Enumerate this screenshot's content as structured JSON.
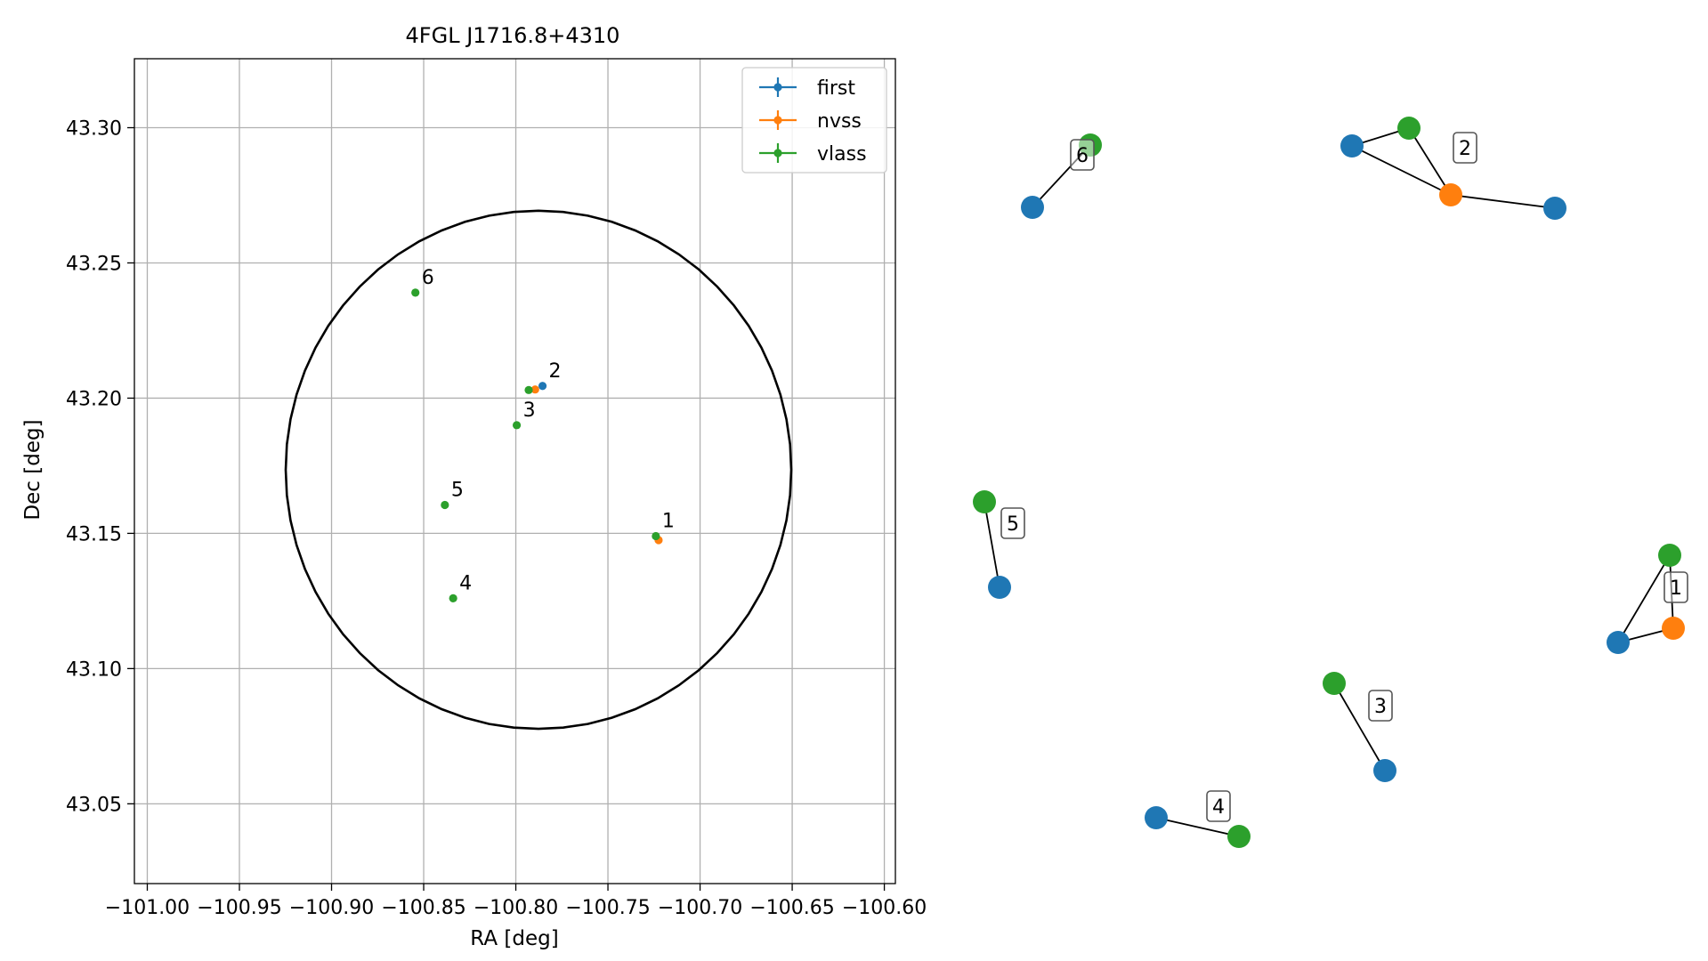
{
  "chart_data": [
    {
      "type": "scatter",
      "title": "4FGL J1716.8+4310",
      "xlabel": "RA [deg]",
      "ylabel": "Dec [deg]",
      "xlim": [
        -101.007,
        -100.594
      ],
      "ylim": [
        43.0205,
        43.3255
      ],
      "xticks": [
        -101.0,
        -100.95,
        -100.9,
        -100.85,
        -100.8,
        -100.75,
        -100.7,
        -100.65,
        -100.6
      ],
      "xtick_labels": [
        "−101.00",
        "−100.95",
        "−100.90",
        "−100.85",
        "−100.80",
        "−100.75",
        "−100.70",
        "−100.65",
        "−100.60"
      ],
      "yticks": [
        43.05,
        43.1,
        43.15,
        43.2,
        43.25,
        43.3
      ],
      "ytick_labels": [
        "43.05",
        "43.10",
        "43.15",
        "43.20",
        "43.25",
        "43.30"
      ],
      "grid": true,
      "legend_position": "top-right",
      "ellipse": {
        "center": [
          -100.7877,
          43.1735
        ],
        "ra_semi_axis": 0.1372,
        "dec_semi_axis": 0.0958
      },
      "series": [
        {
          "name": "first",
          "color": "#1f77b4",
          "points": [
            {
              "x": -100.7855,
              "y": 43.2045
            }
          ]
        },
        {
          "name": "nvss",
          "color": "#ff7f0e",
          "points": [
            {
              "x": -100.7225,
              "y": 43.1475
            },
            {
              "x": -100.7895,
              "y": 43.2032
            }
          ]
        },
        {
          "name": "vlass",
          "color": "#2ca02c",
          "points": [
            {
              "x": -100.724,
              "y": 43.149
            },
            {
              "x": -100.793,
              "y": 43.203
            },
            {
              "x": -100.7995,
              "y": 43.19
            },
            {
              "x": -100.834,
              "y": 43.126
            },
            {
              "x": -100.8385,
              "y": 43.1605
            },
            {
              "x": -100.8545,
              "y": 43.239
            }
          ]
        }
      ],
      "annotations": [
        {
          "text": "1",
          "x": -100.724,
          "y": 43.149
        },
        {
          "text": "2",
          "x": -100.7855,
          "y": 43.2045
        },
        {
          "text": "3",
          "x": -100.7995,
          "y": 43.19
        },
        {
          "text": "4",
          "x": -100.834,
          "y": 43.126
        },
        {
          "text": "5",
          "x": -100.8385,
          "y": 43.1605
        },
        {
          "text": "6",
          "x": -100.8545,
          "y": 43.239
        }
      ]
    },
    {
      "type": "network",
      "colors": {
        "first": "#1f77b4",
        "nvss": "#ff7f0e",
        "vlass": "#2ca02c"
      },
      "nodes": [
        {
          "id": "6a",
          "survey": "vlass"
        },
        {
          "id": "6b",
          "survey": "first"
        },
        {
          "id": "2a",
          "survey": "first"
        },
        {
          "id": "2b",
          "survey": "vlass"
        },
        {
          "id": "2c",
          "survey": "nvss"
        },
        {
          "id": "2d",
          "survey": "first"
        },
        {
          "id": "5a",
          "survey": "vlass"
        },
        {
          "id": "5b",
          "survey": "first"
        },
        {
          "id": "1a",
          "survey": "vlass"
        },
        {
          "id": "1b",
          "survey": "first"
        },
        {
          "id": "1c",
          "survey": "nvss"
        },
        {
          "id": "3a",
          "survey": "vlass"
        },
        {
          "id": "3b",
          "survey": "first"
        },
        {
          "id": "4a",
          "survey": "first"
        },
        {
          "id": "4b",
          "survey": "vlass"
        }
      ],
      "edges": [
        [
          "6a",
          "6b"
        ],
        [
          "2a",
          "2b"
        ],
        [
          "2a",
          "2c"
        ],
        [
          "2b",
          "2c"
        ],
        [
          "2c",
          "2d"
        ],
        [
          "5a",
          "5b"
        ],
        [
          "1a",
          "1b"
        ],
        [
          "1a",
          "1c"
        ],
        [
          "1b",
          "1c"
        ],
        [
          "3a",
          "3b"
        ],
        [
          "4a",
          "4b"
        ]
      ],
      "group_labels": [
        {
          "text": "6"
        },
        {
          "text": "2"
        },
        {
          "text": "5"
        },
        {
          "text": "1"
        },
        {
          "text": "3"
        },
        {
          "text": "4"
        }
      ]
    }
  ]
}
